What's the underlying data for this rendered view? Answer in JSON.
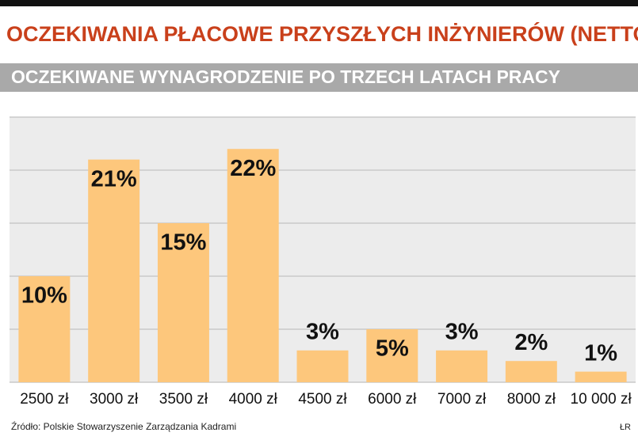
{
  "chart_data": {
    "type": "bar",
    "title": "OCZEKIWANIA PŁACOWE PRZYSZŁYCH INŻYNIERÓW (NETTO)",
    "subtitle": "OCZEKIWANE WYNAGRODZENIE PO TRZECH LATACH PRACY",
    "categories": [
      "2500 zł",
      "3000 zł",
      "3500 zł",
      "4000 zł",
      "4500 zł",
      "6000 zł",
      "7000 zł",
      "8000 zł",
      "10 000 zł"
    ],
    "values": [
      10,
      21,
      15,
      22,
      3,
      5,
      3,
      2,
      1
    ],
    "value_labels": [
      "10%",
      "21%",
      "15%",
      "22%",
      "3%",
      "5%",
      "3%",
      "2%",
      "1%"
    ],
    "color": "#fdc77c",
    "ylim": [
      0,
      25
    ],
    "yticks": [
      0,
      5,
      10,
      15,
      20,
      25
    ],
    "grid": true,
    "source": "Źródło: Polskie Stowarzyszenie Zarządzania Kadrami",
    "credit": "ŁR"
  }
}
